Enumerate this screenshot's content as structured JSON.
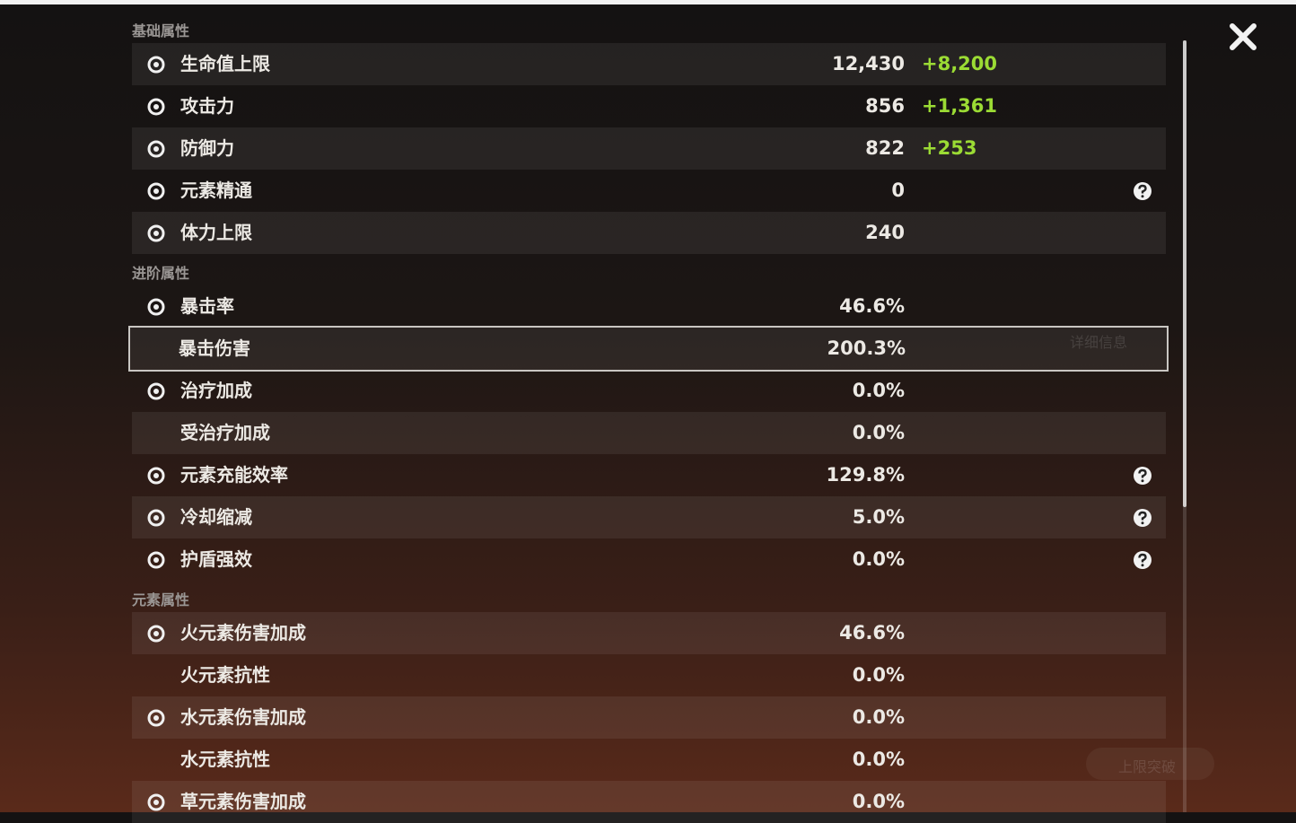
{
  "sections": [
    {
      "title": "基础属性",
      "rows": [
        {
          "label": "生命值上限",
          "value": "12,430",
          "bonus": "+8,200",
          "icon": true
        },
        {
          "label": "攻击力",
          "value": "856",
          "bonus": "+1,361",
          "icon": true
        },
        {
          "label": "防御力",
          "value": "822",
          "bonus": "+253",
          "icon": true
        },
        {
          "label": "元素精通",
          "value": "0",
          "icon": true,
          "help": true
        },
        {
          "label": "体力上限",
          "value": "240",
          "icon": true
        }
      ]
    },
    {
      "title": "进阶属性",
      "rows": [
        {
          "label": "暴击率",
          "value": "46.6%",
          "icon": true
        },
        {
          "label": "暴击伤害",
          "value": "200.3%",
          "icon": false,
          "selected": true
        },
        {
          "label": "治疗加成",
          "value": "0.0%",
          "icon": true
        },
        {
          "label": "受治疗加成",
          "value": "0.0%",
          "icon": false
        },
        {
          "label": "元素充能效率",
          "value": "129.8%",
          "icon": true,
          "help": true
        },
        {
          "label": "冷却缩减",
          "value": "5.0%",
          "icon": true,
          "help": true
        },
        {
          "label": "护盾强效",
          "value": "0.0%",
          "icon": true,
          "help": true
        }
      ]
    },
    {
      "title": "元素属性",
      "rows": [
        {
          "label": "火元素伤害加成",
          "value": "46.6%",
          "icon": true
        },
        {
          "label": "火元素抗性",
          "value": "0.0%",
          "icon": false
        },
        {
          "label": "水元素伤害加成",
          "value": "0.0%",
          "icon": true
        },
        {
          "label": "水元素抗性",
          "value": "0.0%",
          "icon": false
        },
        {
          "label": "草元素伤害加成",
          "value": "0.0%",
          "icon": true
        }
      ]
    }
  ],
  "background": {
    "detail": "详细信息",
    "ascend": "上限突破"
  }
}
